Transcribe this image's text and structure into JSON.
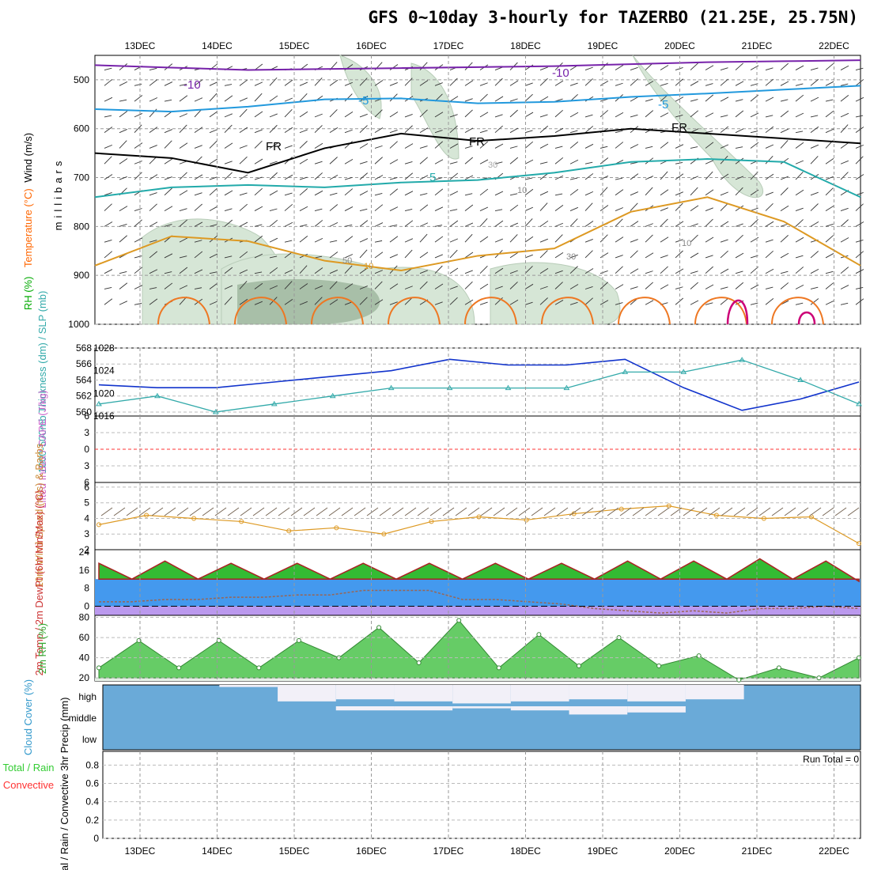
{
  "title": "GFS 0~10day 3-hourly for TAZERBO (21.25E, 25.75N)",
  "colors": {
    "rh": "#33cc33",
    "temperature": "#ff6600",
    "wind": "#333333",
    "thickness": "#33aaaa",
    "slp": "#6633cc",
    "lifted": "#ff3333",
    "cape": "#cc66cc",
    "speed": "#cc8833",
    "temp2m": "#cc3333",
    "rh2m": "#33aa33",
    "cloud": "#3399cc",
    "precip_total": "#33cc33",
    "precip_conv": "#ff3333"
  },
  "chart_data": [
    {
      "type": "line",
      "panel": "upper-air",
      "title": "Wind (m/s), Temperature (°C), RH (%)",
      "ylabel": "millibars",
      "ylim": [
        1000,
        450
      ],
      "yticks": [
        "500",
        "600",
        "700",
        "800",
        "900",
        "1000"
      ],
      "xlabels": [
        "13DEC",
        "14DEC",
        "15DEC",
        "16DEC",
        "17DEC",
        "18DEC",
        "19DEC",
        "20DEC",
        "21DEC",
        "22DEC"
      ],
      "ylabel_parts": [
        {
          "text": "RH (%)",
          "role": "rh"
        },
        {
          "text": "Temperature (°C)",
          "role": "temperature"
        },
        {
          "text": "Wind (m/s)",
          "role": "wind"
        }
      ],
      "contour_labels": [
        "-10",
        "-10",
        "-5",
        "-5",
        "FR",
        "FR",
        "FR",
        "5",
        "10",
        "30",
        "50",
        "10",
        "30",
        "10"
      ],
      "isotherms": [
        {
          "name": "-10",
          "values": [
            470,
            475,
            480,
            478,
            476,
            474,
            472,
            468,
            464,
            462,
            460
          ]
        },
        {
          "name": "-5",
          "values": [
            560,
            565,
            555,
            540,
            538,
            548,
            545,
            535,
            528,
            520,
            512
          ]
        },
        {
          "name": "FR",
          "values": [
            650,
            660,
            690,
            640,
            610,
            625,
            615,
            600,
            610,
            620,
            630
          ]
        },
        {
          "name": "5",
          "values": [
            740,
            720,
            715,
            720,
            710,
            705,
            690,
            668,
            662,
            668,
            740
          ]
        },
        {
          "name": "10",
          "values": [
            880,
            820,
            830,
            870,
            890,
            860,
            845,
            770,
            740,
            790,
            880
          ]
        }
      ]
    },
    {
      "type": "line",
      "panel": "thickness-slp",
      "ylabel": "1000-500mb Thickness (dm) / SLP (mb)",
      "left_ticks": [
        "560",
        "562",
        "564",
        "566",
        "568"
      ],
      "right_ticks": [
        "1016",
        "1020",
        "1024",
        "1028"
      ],
      "ylim_thickness": [
        559.5,
        568
      ],
      "ylim_slp": [
        1016,
        1028
      ],
      "series": [
        {
          "name": "SLP (mb)",
          "values": [
            1021.5,
            1021,
            1021,
            1022,
            1023,
            1024,
            1026,
            1025,
            1025,
            1026,
            1021,
            1017,
            1019,
            1022
          ]
        },
        {
          "name": "Thickness (dm)",
          "values": [
            561,
            562,
            560,
            561,
            562,
            563,
            563,
            563,
            563,
            565,
            565,
            566.5,
            564,
            561
          ]
        }
      ]
    },
    {
      "type": "line",
      "panel": "stability",
      "ylabel": "Lifted Index / CAPE (J/kg)",
      "yticks": [
        "6",
        "3",
        "0",
        "3",
        "6"
      ],
      "ylim": [
        -6,
        6
      ],
      "series": [
        {
          "name": "Lifted Index",
          "values": [
            0,
            0
          ]
        }
      ]
    },
    {
      "type": "line",
      "panel": "wind10m",
      "ylabel": "10m Wind Speed (m/s) & Barbs",
      "yticks": [
        "2",
        "3",
        "4",
        "5",
        "6"
      ],
      "ylim": [
        2,
        6.3
      ],
      "series": [
        {
          "name": "10m Wind Speed (m/s)",
          "values": [
            3.6,
            4.2,
            4.0,
            3.8,
            3.2,
            3.4,
            3.0,
            3.8,
            4.1,
            3.9,
            4.3,
            4.6,
            4.8,
            4.2,
            4.0,
            4.1,
            2.4
          ]
        }
      ]
    },
    {
      "type": "area",
      "panel": "temp2m",
      "ylabel": "2m Temp / 2m DewPt (6hr Min/Max) (°C)",
      "yticks": [
        "0",
        "8",
        "16",
        "24"
      ],
      "ylim": [
        -4,
        25
      ],
      "series": [
        {
          "name": "2m Temp",
          "values": [
            19,
            12,
            20,
            12,
            19,
            12,
            19,
            12,
            19,
            12,
            19,
            12,
            19,
            12,
            19,
            12,
            20,
            12,
            20,
            12,
            21,
            12,
            20,
            11
          ]
        },
        {
          "name": "2m DewPt",
          "values": [
            2,
            2,
            3,
            3,
            4,
            4,
            5,
            5,
            7,
            7,
            7,
            3,
            3,
            2,
            1,
            -1,
            -2,
            -3,
            -2,
            -3,
            -1,
            -1,
            0,
            -1
          ]
        }
      ]
    },
    {
      "type": "area",
      "panel": "rh2m",
      "ylabel": "2m RH (%)",
      "yticks": [
        "20",
        "40",
        "60",
        "80"
      ],
      "ylim": [
        17,
        82
      ],
      "series": [
        {
          "name": "2m RH",
          "values": [
            30,
            57,
            30,
            57,
            30,
            57,
            40,
            70,
            35,
            77,
            30,
            63,
            32,
            60,
            32,
            42,
            18,
            30,
            20,
            40
          ]
        }
      ]
    },
    {
      "type": "heatmap",
      "panel": "cloud",
      "ylabel": "Cloud Cover (%)",
      "levels": [
        "high",
        "middle",
        "low"
      ],
      "series": [
        {
          "name": "high",
          "values": [
            0,
            0,
            10,
            80,
            70,
            80,
            90,
            80,
            70,
            80,
            70,
            0,
            0
          ]
        },
        {
          "name": "middle",
          "values": [
            0,
            0,
            0,
            0,
            20,
            20,
            10,
            20,
            40,
            30,
            0,
            0,
            0
          ]
        },
        {
          "name": "low",
          "values": [
            0,
            0,
            0,
            0,
            0,
            0,
            0,
            0,
            0,
            0,
            0,
            0,
            0
          ]
        }
      ]
    },
    {
      "type": "bar",
      "panel": "precip",
      "ylabel": "Total / Rain / Convective  3hr Precip (mm)",
      "ylabel_parts": [
        {
          "text": "Total / Rain",
          "role": "precip_total"
        },
        {
          "text": "Convective",
          "role": "precip_conv"
        }
      ],
      "yticks": [
        "0",
        "0.2",
        "0.4",
        "0.6",
        "0.8"
      ],
      "ylim": [
        0,
        0.95
      ],
      "values": [
        0,
        0,
        0,
        0,
        0,
        0,
        0,
        0,
        0,
        0
      ],
      "run_total": "Run Total = 0"
    }
  ]
}
